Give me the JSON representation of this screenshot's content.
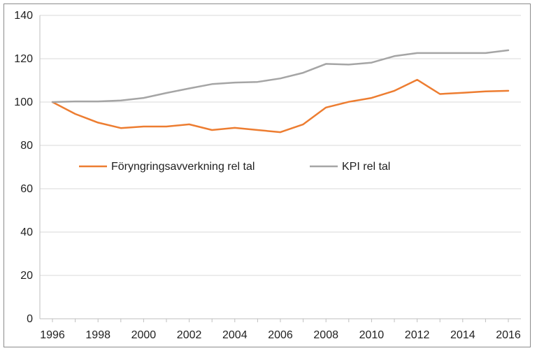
{
  "chart_data": {
    "type": "line",
    "title": "",
    "xlabel": "",
    "ylabel": "",
    "x": [
      1996,
      1997,
      1998,
      1999,
      2000,
      2001,
      2002,
      2003,
      2004,
      2005,
      2006,
      2007,
      2008,
      2009,
      2010,
      2011,
      2012,
      2013,
      2014,
      2015,
      2016
    ],
    "x_ticks": [
      "1996",
      "1998",
      "2000",
      "2002",
      "2004",
      "2006",
      "2008",
      "2010",
      "2012",
      "2014",
      "2016"
    ],
    "y_ticks": [
      "0",
      "20",
      "40",
      "60",
      "80",
      "100",
      "120",
      "140"
    ],
    "ylim": [
      0,
      140
    ],
    "grid": "horizontal",
    "legend_position": "inside-middle-left",
    "series": [
      {
        "name": "Föryngringsavverkning rel tal",
        "color": "#ed7d31",
        "values": [
          100,
          94.5,
          90.5,
          88,
          88.7,
          88.7,
          89.7,
          87.1,
          88.1,
          87.1,
          86.1,
          89.7,
          97.5,
          100.1,
          101.9,
          105.2,
          110.3,
          103.7,
          104.3,
          104.9,
          105.2
        ]
      },
      {
        "name": "KPI rel tal",
        "color": "#a5a5a5",
        "values": [
          100,
          100.3,
          100.3,
          100.7,
          101.9,
          104.2,
          106.3,
          108.3,
          109,
          109.3,
          110.9,
          113.5,
          117.6,
          117.3,
          118.2,
          121.2,
          122.6,
          122.6,
          122.6,
          122.6,
          123.9
        ]
      }
    ]
  }
}
